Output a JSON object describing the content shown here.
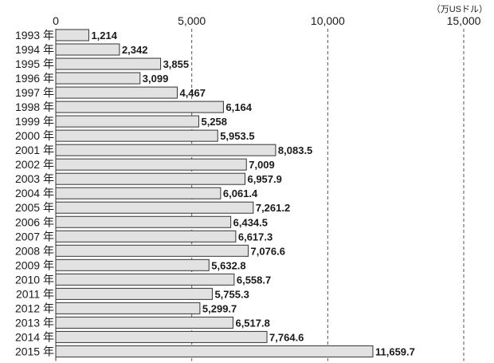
{
  "chart_data": {
    "type": "bar",
    "orientation": "horizontal",
    "unit": "（万USドル）",
    "categories": [
      "1993 年",
      "1994 年",
      "1995 年",
      "1996 年",
      "1997 年",
      "1998 年",
      "1999 年",
      "2000 年",
      "2001 年",
      "2002 年",
      "2003 年",
      "2004 年",
      "2005 年",
      "2006 年",
      "2007 年",
      "2008 年",
      "2009 年",
      "2010 年",
      "2011 年",
      "2012 年",
      "2013 年",
      "2014 年",
      "2015 年"
    ],
    "values": [
      1214,
      2342,
      3855,
      3099,
      4467,
      6164,
      5258,
      5953.5,
      8083.5,
      7009,
      6957.9,
      6061.4,
      7261.2,
      6434.5,
      6617.3,
      7076.6,
      5632.8,
      6558.7,
      5755.3,
      5299.7,
      6517.8,
      7764.6,
      11659.7
    ],
    "value_labels": [
      "1,214",
      "2,342",
      "3,855",
      "3,099",
      "4,467",
      "6,164",
      "5,258",
      "5,953.5",
      "8,083.5",
      "7,009",
      "6,957.9",
      "6,061.4",
      "7,261.2",
      "6,434.5",
      "6,617.3",
      "7,076.6",
      "5,632.8",
      "6,558.7",
      "5,755.3",
      "5,299.7",
      "6,517.8",
      "7,764.6",
      "11,659.7"
    ],
    "x_ticks": [
      0,
      5000,
      10000,
      15000
    ],
    "x_tick_labels": [
      "0",
      "5,000",
      "10,000",
      "15,000"
    ],
    "xlim": [
      0,
      15000
    ],
    "grid": "vertical dashed",
    "colors": {
      "bar_fill": "#e2e2e2",
      "bar_stroke": "#333333",
      "text": "#1a1a1a"
    }
  }
}
